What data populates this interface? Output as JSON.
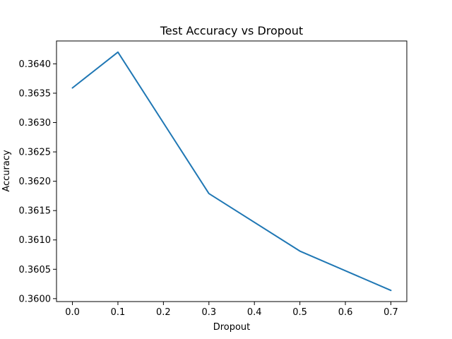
{
  "chart_data": {
    "type": "line",
    "title": "Test Accuracy vs Dropout",
    "xlabel": "Dropout",
    "ylabel": "Accuracy",
    "x": [
      0.0,
      0.1,
      0.3,
      0.5,
      0.7
    ],
    "series": [
      {
        "values": [
          0.36359,
          0.3642,
          0.36179,
          0.36081,
          0.36014
        ],
        "color": "#1f77b4"
      }
    ],
    "xlim": [
      -0.035,
      0.735
    ],
    "ylim": [
      0.35995,
      0.36439
    ],
    "xticks": [
      0.0,
      0.1,
      0.2,
      0.3,
      0.4,
      0.5,
      0.6,
      0.7
    ],
    "xtick_labels": [
      "0.0",
      "0.1",
      "0.2",
      "0.3",
      "0.4",
      "0.5",
      "0.6",
      "0.7"
    ],
    "yticks": [
      0.36,
      0.3605,
      0.361,
      0.3615,
      0.362,
      0.3625,
      0.363,
      0.3635,
      0.364
    ],
    "ytick_labels": [
      "0.3600",
      "0.3605",
      "0.3610",
      "0.3615",
      "0.3620",
      "0.3625",
      "0.3630",
      "0.3635",
      "0.3640"
    ],
    "grid": false,
    "legend": "none"
  }
}
